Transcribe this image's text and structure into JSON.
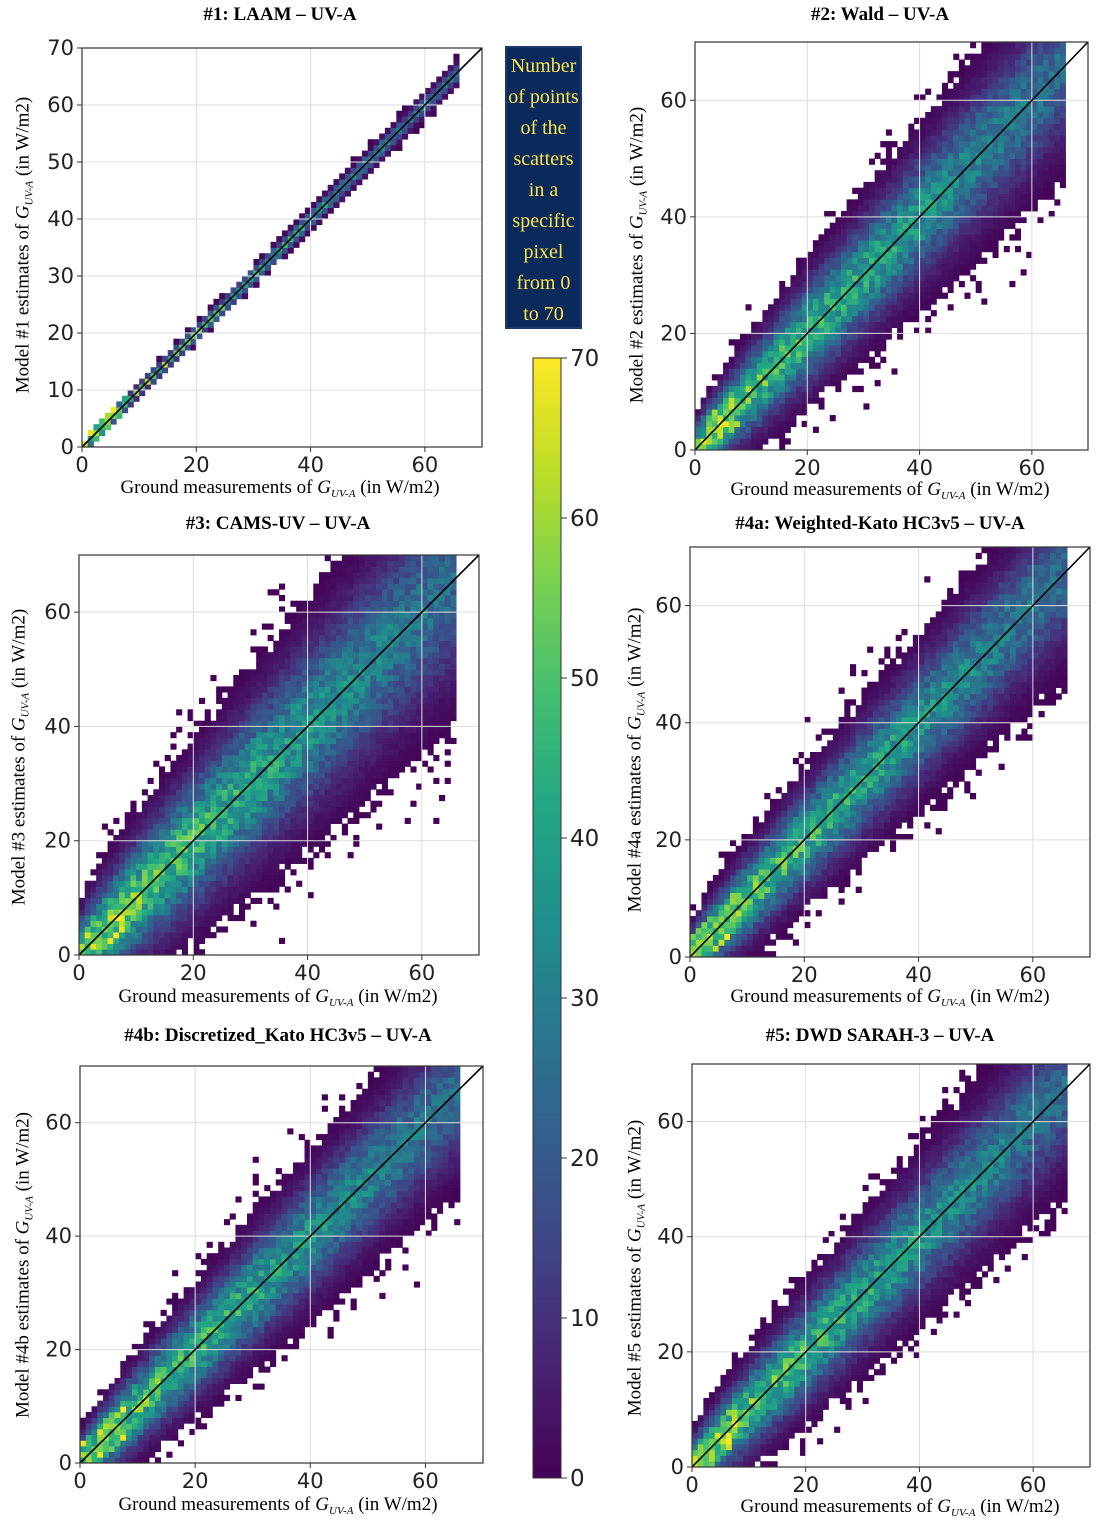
{
  "panels": [
    {
      "title": "#1: LAAM – UV-A",
      "ylabel_prefix": "Model #1 estimates of ",
      "ylabel_var": "G",
      "ylabel_sub": "UV-A",
      "ylabel_suffix": " (in W/m2)",
      "yticks": [
        0,
        10,
        20,
        30,
        40,
        50,
        60,
        70
      ],
      "spread": 0.7,
      "abs_spread": 0.3
    },
    {
      "title": "#2: Wald – UV-A",
      "ylabel_prefix": "Model #2 estimates of ",
      "ylabel_var": "G",
      "ylabel_sub": "UV-A",
      "ylabel_suffix": " (in W/m2)",
      "yticks": [
        0,
        20,
        40,
        60
      ],
      "spread": 5.5,
      "abs_spread": 2.0
    },
    {
      "title": "#3: CAMS-UV – UV-A",
      "ylabel_prefix": "Model #3 estimates of ",
      "ylabel_var": "G",
      "ylabel_sub": "UV-A",
      "ylabel_suffix": " (in W/m2)",
      "yticks": [
        0,
        20,
        40,
        60
      ],
      "spread": 7.0,
      "abs_spread": 3.0
    },
    {
      "title": "#4a: Weighted-Kato HC3v5 – UV-A",
      "ylabel_prefix": "Model #4a estimates of ",
      "ylabel_var": "G",
      "ylabel_sub": "UV-A",
      "ylabel_suffix": " (in W/m2)",
      "yticks": [
        0,
        20,
        40,
        60
      ],
      "spread": 5.0,
      "abs_spread": 2.0
    },
    {
      "title": "#4b: Discretized_Kato HC3v5 – UV-A",
      "ylabel_prefix": "Model #4b estimates of ",
      "ylabel_var": "G",
      "ylabel_sub": "UV-A",
      "ylabel_suffix": " (in W/m2)",
      "yticks": [
        0,
        20,
        40,
        60
      ],
      "spread": 5.0,
      "abs_spread": 2.0
    },
    {
      "title": "#5: DWD SARAH-3 – UV-A",
      "ylabel_prefix": "Model #5 estimates of ",
      "ylabel_var": "G",
      "ylabel_sub": "UV-A",
      "ylabel_suffix": " (in W/m2)",
      "yticks": [
        0,
        20,
        40,
        60
      ],
      "spread": 5.0,
      "abs_spread": 2.2
    }
  ],
  "xlabel": {
    "prefix": "Ground measurements of ",
    "var": "G",
    "sub": "UV-A",
    "suffix": " (in W/m2)"
  },
  "xticks": [
    0,
    20,
    40,
    60
  ],
  "colorbar_note": [
    "Number",
    "of points",
    "of the",
    "scatters",
    "in a",
    "specific",
    "pixel",
    "from 0",
    "to 70"
  ],
  "colorbar_ticks": [
    0,
    10,
    20,
    30,
    40,
    50,
    60,
    70
  ],
  "colors": {
    "note_bg": "#0b2a5c",
    "note_text": "#ffe24a",
    "identity_line": "#000000",
    "grid": "#dddddd"
  },
  "chart_data": [
    {
      "type": "heatmap",
      "title": "#1: LAAM – UV-A",
      "xlabel": "Ground measurements of GUV-A (in W/m2)",
      "ylabel": "Model #1 estimates of GUV-A (in W/m2)",
      "xlim": [
        0,
        70
      ],
      "ylim": [
        0,
        70
      ],
      "colorbar_range": [
        0,
        70
      ],
      "reference_line": "y = x",
      "grid": true
    },
    {
      "type": "heatmap",
      "title": "#2: Wald – UV-A",
      "xlabel": "Ground measurements of GUV-A (in W/m2)",
      "ylabel": "Model #2 estimates of GUV-A (in W/m2)",
      "xlim": [
        0,
        70
      ],
      "ylim": [
        0,
        70
      ],
      "colorbar_range": [
        0,
        70
      ],
      "reference_line": "y = x",
      "grid": true
    },
    {
      "type": "heatmap",
      "title": "#3: CAMS-UV – UV-A",
      "xlabel": "Ground measurements of GUV-A (in W/m2)",
      "ylabel": "Model #3 estimates of GUV-A (in W/m2)",
      "xlim": [
        0,
        70
      ],
      "ylim": [
        0,
        70
      ],
      "colorbar_range": [
        0,
        70
      ],
      "reference_line": "y = x",
      "grid": true
    },
    {
      "type": "heatmap",
      "title": "#4a: Weighted-Kato HC3v5 – UV-A",
      "xlabel": "Ground measurements of GUV-A (in W/m2)",
      "ylabel": "Model #4a estimates of GUV-A (in W/m2)",
      "xlim": [
        0,
        70
      ],
      "ylim": [
        0,
        70
      ],
      "colorbar_range": [
        0,
        70
      ],
      "reference_line": "y = x",
      "grid": true
    },
    {
      "type": "heatmap",
      "title": "#4b: Discretized_Kato HC3v5 – UV-A",
      "xlabel": "Ground measurements of GUV-A (in W/m2)",
      "ylabel": "Model #4b estimates of GUV-A (in W/m2)",
      "xlim": [
        0,
        70
      ],
      "ylim": [
        0,
        70
      ],
      "colorbar_range": [
        0,
        70
      ],
      "reference_line": "y = x",
      "grid": true
    },
    {
      "type": "heatmap",
      "title": "#5: DWD SARAH-3 – UV-A",
      "xlabel": "Ground measurements of GUV-A (in W/m2)",
      "ylabel": "Model #5 estimates of GUV-A (in W/m2)",
      "xlim": [
        0,
        70
      ],
      "ylim": [
        0,
        70
      ],
      "colorbar_range": [
        0,
        70
      ],
      "reference_line": "y = x",
      "grid": true
    }
  ]
}
